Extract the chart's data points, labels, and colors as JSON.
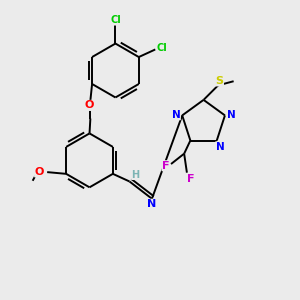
{
  "background_color": "#ebebeb",
  "atom_colors": {
    "C": "#000000",
    "H": "#7cb4b4",
    "N": "#0000ff",
    "O": "#ff0000",
    "S": "#cccc00",
    "F": "#cc00cc",
    "Cl": "#00cc00"
  }
}
